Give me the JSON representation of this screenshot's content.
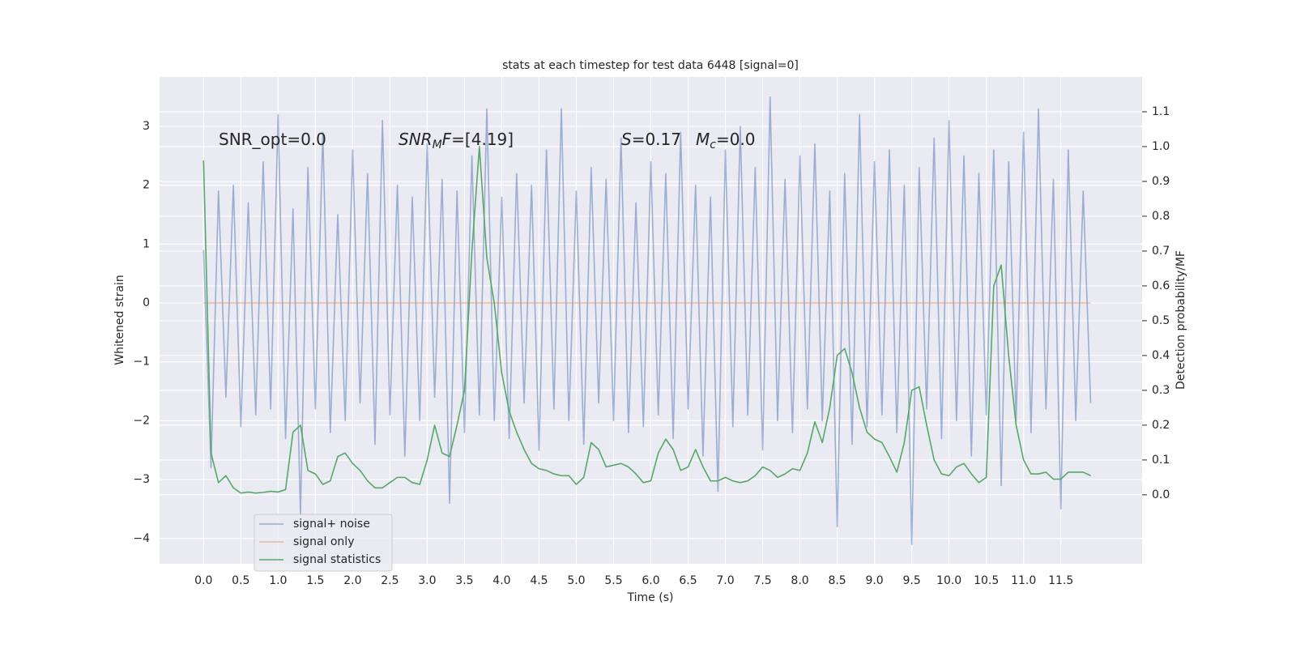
{
  "chart_data": {
    "type": "line",
    "title": "stats at each timestep for test data 6448 [signal=0]",
    "xlabel": "Time (s)",
    "ylabel": "Whitened strain",
    "y2label": "Detection probability/MF",
    "annotations": [
      [
        {
          "text": "SNR_opt=0.0"
        }
      ],
      [
        {
          "text": "SNR",
          "style": "italic"
        },
        {
          "text": "M",
          "style": "italic-sub"
        },
        {
          "text": "F",
          "style": "italic"
        },
        {
          "text": "=[4.19]"
        }
      ],
      [
        {
          "text": "S",
          "style": "italic"
        },
        {
          "text": "=0.17"
        }
      ],
      [
        {
          "text": "M",
          "style": "italic"
        },
        {
          "text": "c",
          "style": "italic-sub"
        },
        {
          "text": "=0.0"
        }
      ]
    ],
    "x": [
      0.0,
      0.1,
      0.2,
      0.3,
      0.4,
      0.5,
      0.6,
      0.7,
      0.8,
      0.9,
      1.0,
      1.1,
      1.2,
      1.3,
      1.4,
      1.5,
      1.6,
      1.7,
      1.8,
      1.9,
      2.0,
      2.1,
      2.2,
      2.3,
      2.4,
      2.5,
      2.6,
      2.7,
      2.8,
      2.9,
      3.0,
      3.1,
      3.2,
      3.3,
      3.4,
      3.5,
      3.6,
      3.7,
      3.8,
      3.9,
      4.0,
      4.1,
      4.2,
      4.3,
      4.4,
      4.5,
      4.6,
      4.7,
      4.8,
      4.9,
      5.0,
      5.1,
      5.2,
      5.3,
      5.4,
      5.5,
      5.6,
      5.7,
      5.8,
      5.9,
      6.0,
      6.1,
      6.2,
      6.3,
      6.4,
      6.5,
      6.6,
      6.7,
      6.8,
      6.9,
      7.0,
      7.1,
      7.2,
      7.3,
      7.4,
      7.5,
      7.6,
      7.7,
      7.8,
      7.9,
      8.0,
      8.1,
      8.2,
      8.3,
      8.4,
      8.5,
      8.6,
      8.7,
      8.8,
      8.9,
      9.0,
      9.1,
      9.2,
      9.3,
      9.4,
      9.5,
      9.6,
      9.7,
      9.8,
      9.9,
      10.0,
      10.1,
      10.2,
      10.3,
      10.4,
      10.5,
      10.6,
      10.7,
      10.8,
      10.9,
      11.0,
      11.1,
      11.2,
      11.3,
      11.4,
      11.5,
      11.6,
      11.7,
      11.8,
      11.9
    ],
    "series": [
      {
        "name": "signal+ noise",
        "color": "#4c72b0",
        "alpha": 0.5,
        "axis": "y",
        "values": [
          0.9,
          -2.8,
          1.9,
          -1.6,
          2.0,
          -2.1,
          1.7,
          -1.9,
          2.4,
          -1.8,
          3.2,
          -2.3,
          1.6,
          -3.6,
          2.3,
          -1.8,
          2.9,
          -2.2,
          1.5,
          -2.0,
          2.6,
          -1.7,
          2.2,
          -2.4,
          3.1,
          -1.9,
          2.0,
          -2.6,
          1.8,
          -2.0,
          2.7,
          -1.6,
          2.1,
          -3.4,
          1.9,
          -2.2,
          2.5,
          -1.9,
          3.3,
          -2.0,
          1.8,
          -2.3,
          2.2,
          -1.7,
          2.0,
          -2.5,
          2.6,
          -1.8,
          3.3,
          -2.0,
          1.9,
          -2.4,
          2.3,
          -1.7,
          2.1,
          -2.0,
          2.8,
          -2.2,
          1.7,
          -2.1,
          2.4,
          -1.9,
          2.2,
          -2.3,
          2.9,
          -1.8,
          2.0,
          -2.6,
          1.8,
          -3.2,
          2.6,
          -2.1,
          3.0,
          -1.9,
          2.3,
          -2.5,
          3.5,
          -2.0,
          2.1,
          -2.2,
          2.5,
          -1.8,
          2.7,
          -2.0,
          1.9,
          -3.8,
          2.2,
          -2.4,
          3.2,
          -2.1,
          2.4,
          -1.9,
          2.6,
          -2.2,
          2.0,
          -4.1,
          2.3,
          -1.8,
          2.8,
          -2.3,
          3.1,
          -2.0,
          2.5,
          -2.6,
          2.2,
          -1.9,
          2.6,
          -3.1,
          2.4,
          -2.0,
          2.9,
          -2.2,
          3.3,
          -1.8,
          2.1,
          -3.5,
          2.6,
          -2.0,
          1.9,
          -1.7
        ]
      },
      {
        "name": "signal only",
        "color": "#dd8452",
        "alpha": 0.5,
        "axis": "y",
        "values": [
          0,
          0,
          0,
          0,
          0,
          0,
          0,
          0,
          0,
          0,
          0,
          0,
          0,
          0,
          0,
          0,
          0,
          0,
          0,
          0,
          0,
          0,
          0,
          0,
          0,
          0,
          0,
          0,
          0,
          0,
          0,
          0,
          0,
          0,
          0,
          0,
          0,
          0,
          0,
          0,
          0,
          0,
          0,
          0,
          0,
          0,
          0,
          0,
          0,
          0,
          0,
          0,
          0,
          0,
          0,
          0,
          0,
          0,
          0,
          0,
          0,
          0,
          0,
          0,
          0,
          0,
          0,
          0,
          0,
          0,
          0,
          0,
          0,
          0,
          0,
          0,
          0,
          0,
          0,
          0,
          0,
          0,
          0,
          0,
          0,
          0,
          0,
          0,
          0,
          0,
          0,
          0,
          0,
          0,
          0,
          0,
          0,
          0,
          0,
          0,
          0,
          0,
          0,
          0,
          0,
          0,
          0,
          0,
          0,
          0,
          0,
          0,
          0,
          0,
          0,
          0,
          0,
          0,
          0,
          0
        ]
      },
      {
        "name": "signal statistics",
        "color": "#55a868",
        "alpha": 1,
        "axis": "y2",
        "values": [
          0.96,
          0.12,
          0.035,
          0.055,
          0.02,
          0.005,
          0.008,
          0.005,
          0.007,
          0.01,
          0.008,
          0.015,
          0.18,
          0.2,
          0.07,
          0.06,
          0.03,
          0.04,
          0.11,
          0.12,
          0.09,
          0.07,
          0.04,
          0.02,
          0.02,
          0.035,
          0.05,
          0.05,
          0.035,
          0.03,
          0.1,
          0.2,
          0.12,
          0.11,
          0.2,
          0.3,
          0.7,
          1.0,
          0.68,
          0.55,
          0.35,
          0.24,
          0.18,
          0.13,
          0.09,
          0.075,
          0.07,
          0.06,
          0.055,
          0.055,
          0.03,
          0.05,
          0.15,
          0.13,
          0.08,
          0.085,
          0.09,
          0.08,
          0.06,
          0.035,
          0.04,
          0.12,
          0.16,
          0.13,
          0.07,
          0.08,
          0.13,
          0.08,
          0.04,
          0.04,
          0.05,
          0.04,
          0.035,
          0.04,
          0.055,
          0.08,
          0.07,
          0.05,
          0.06,
          0.075,
          0.07,
          0.12,
          0.21,
          0.15,
          0.25,
          0.4,
          0.42,
          0.35,
          0.25,
          0.18,
          0.16,
          0.15,
          0.11,
          0.065,
          0.15,
          0.3,
          0.31,
          0.2,
          0.1,
          0.06,
          0.055,
          0.08,
          0.09,
          0.06,
          0.035,
          0.05,
          0.6,
          0.66,
          0.4,
          0.2,
          0.1,
          0.06,
          0.06,
          0.065,
          0.045,
          0.045,
          0.065,
          0.065,
          0.065,
          0.055
        ]
      }
    ],
    "xlim": [
      -0.59,
      12.59
    ],
    "xticks": [
      {
        "value": 0,
        "label": "0.0"
      },
      0.5,
      {
        "value": 1,
        "label": "1.0"
      },
      1.5,
      {
        "value": 2,
        "label": "2.0"
      },
      2.5,
      {
        "value": 3,
        "label": "3.0"
      },
      3.5,
      {
        "value": 4,
        "label": "4.0"
      },
      4.5,
      {
        "value": 5,
        "label": "5.0"
      },
      5.5,
      {
        "value": 6,
        "label": "6.0"
      },
      6.5,
      {
        "value": 7,
        "label": "7.0"
      },
      7.5,
      {
        "value": 8,
        "label": "8.0"
      },
      8.5,
      {
        "value": 9,
        "label": "9.0"
      },
      9.5,
      {
        "value": 10,
        "label": "10.0"
      },
      10.5,
      {
        "value": 11,
        "label": "11.0"
      },
      11.5
    ],
    "ylim": [
      -4.43,
      3.84
    ],
    "yticks": [
      {
        "value": -4,
        "label": "−4"
      },
      {
        "value": -3,
        "label": "−3"
      },
      {
        "value": -2,
        "label": "−2"
      },
      {
        "value": -1,
        "label": "−1"
      },
      0,
      1,
      2,
      3
    ],
    "y2lim": [
      -0.198,
      1.2
    ],
    "y2ticks": [
      {
        "value": 0,
        "label": "0.0"
      },
      0.1,
      0.2,
      0.3,
      0.4,
      0.5,
      0.6,
      0.7,
      0.8,
      0.9,
      {
        "value": 1,
        "label": "1.0"
      },
      1.1
    ],
    "grid": true,
    "y2grid": true,
    "legend": "lower left"
  }
}
